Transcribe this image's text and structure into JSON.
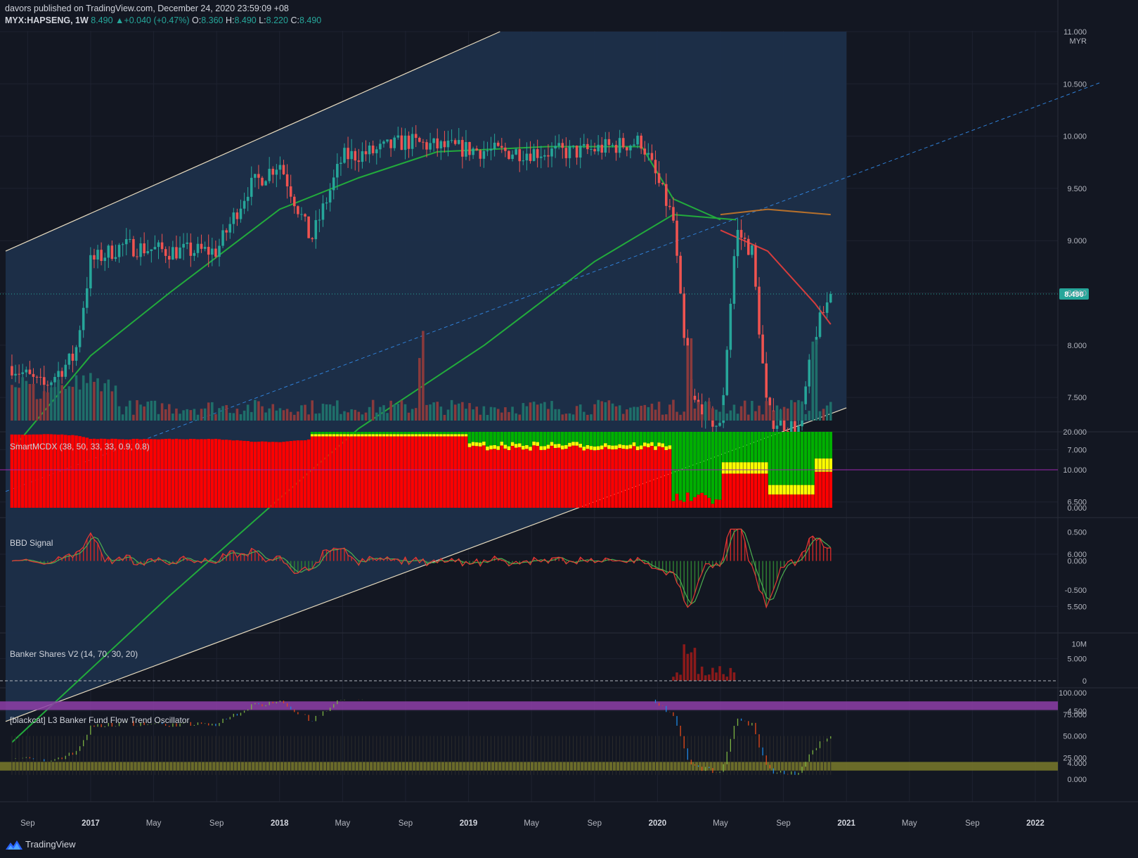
{
  "header": {
    "publisher": "davors published on TradingView.com, December 24, 2020 23:59:09 +08",
    "symbol": "MYX:HAPSENG, 1W",
    "last": "8.490",
    "change": "+0.040 (+0.47%)",
    "open": "8.360",
    "high": "8.490",
    "low": "8.220",
    "close": "8.490",
    "o_label": "O:",
    "h_label": "H:",
    "l_label": "L:",
    "c_label": "C:"
  },
  "panes": {
    "smartmcdx": "SmartMCDX (38, 50, 33, 33, 0.9, 0.8)",
    "bbd": "BBD Signal",
    "banker": "Banker Shares V2 (14, 70, 30, 20)",
    "oscillator": "[blackcat] L3 Banker Fund Flow Trend Oscillator"
  },
  "branding": {
    "name": "TradingView",
    "logo_icon": "tradingview-logo-icon"
  },
  "colors": {
    "background": "#131722",
    "up": "#26a69a",
    "down": "#ef5350",
    "channel_fill": "#1c2f4a",
    "ma_green": "#22ab3c",
    "ma_orange": "#b5702c",
    "ma_red": "#d63c3c",
    "mid_dash": "#2f7fd6",
    "price_label": "#26a69a"
  },
  "chart_data": {
    "type": "candlestick",
    "symbol": "MYX:HAPSENG",
    "interval": "1W",
    "currency": "MYR",
    "last_price": 8.49,
    "x_axis_ticks": [
      "Sep",
      "2017",
      "May",
      "Sep",
      "2018",
      "May",
      "Sep",
      "2019",
      "May",
      "Sep",
      "2020",
      "May",
      "Sep",
      "2021",
      "May",
      "Sep",
      "2022"
    ],
    "price_axis": {
      "ticks": [
        "11.000",
        "10.500",
        "10.000",
        "9.500",
        "9.000",
        "8.500",
        "8.000",
        "7.500",
        "7.000",
        "6.500",
        "6.000",
        "5.500",
        "5.000",
        "4.500",
        "4.000"
      ],
      "ylim": [
        3.6,
        11.0
      ],
      "current_label": "8.490"
    },
    "price_path": {
      "keypoints": [
        [
          "2016-08",
          7.8
        ],
        [
          "2016-10",
          7.6
        ],
        [
          "2016-12",
          7.9
        ],
        [
          "2017-01",
          8.8
        ],
        [
          "2017-03",
          8.95
        ],
        [
          "2017-06",
          8.9
        ],
        [
          "2017-09",
          8.9
        ],
        [
          "2017-11",
          9.5
        ],
        [
          "2018-01",
          9.75
        ],
        [
          "2018-03",
          9.0
        ],
        [
          "2018-05",
          9.8
        ],
        [
          "2018-07",
          9.85
        ],
        [
          "2018-09",
          9.95
        ],
        [
          "2018-11",
          9.9
        ],
        [
          "2019-03",
          9.85
        ],
        [
          "2019-08",
          9.85
        ],
        [
          "2019-12",
          9.95
        ],
        [
          "2020-02",
          9.2
        ],
        [
          "2020-03",
          7.5
        ],
        [
          "2020-05",
          7.2
        ],
        [
          "2020-06",
          9.1
        ],
        [
          "2020-07",
          8.9
        ],
        [
          "2020-08",
          7.3
        ],
        [
          "2020-10",
          7.2
        ],
        [
          "2020-11",
          8.1
        ],
        [
          "2020-12",
          8.49
        ]
      ],
      "weeks": 230
    },
    "channel": {
      "upper": [
        [
          "2016-08",
          8.9
        ],
        [
          "2019-03",
          11.0
        ]
      ],
      "lower": [
        [
          "2016-08",
          4.4
        ],
        [
          "2021-01",
          7.4
        ]
      ],
      "mid_dashed": [
        [
          "2016-08",
          6.6
        ],
        [
          "2021-01",
          9.6
        ]
      ],
      "shaded_until": "2021-01"
    },
    "moving_averages": [
      {
        "color": "#22ab3c",
        "points": [
          [
            "2016-08",
            4.2
          ],
          [
            "2017-06",
            5.6
          ],
          [
            "2018-06",
            7.2
          ],
          [
            "2019-02",
            8.0
          ],
          [
            "2019-09",
            8.8
          ],
          [
            "2020-02",
            9.25
          ],
          [
            "2020-06",
            9.2
          ]
        ]
      },
      {
        "color": "#22ab3c",
        "points": [
          [
            "2016-08",
            7.0
          ],
          [
            "2017-01",
            7.9
          ],
          [
            "2017-06",
            8.5
          ],
          [
            "2018-01",
            9.3
          ],
          [
            "2018-06",
            9.6
          ],
          [
            "2018-11",
            9.85
          ],
          [
            "2019-06",
            9.9
          ],
          [
            "2019-12",
            9.9
          ],
          [
            "2020-02",
            9.4
          ],
          [
            "2020-05",
            9.2
          ]
        ]
      },
      {
        "color": "#b5702c",
        "points": [
          [
            "2020-05",
            9.25
          ],
          [
            "2020-08",
            9.3
          ],
          [
            "2020-12",
            9.25
          ]
        ]
      },
      {
        "color": "#d63c3c",
        "points": [
          [
            "2020-05",
            9.1
          ],
          [
            "2020-08",
            8.9
          ],
          [
            "2020-11",
            8.4
          ],
          [
            "2020-12",
            8.2
          ]
        ]
      }
    ],
    "volume": {
      "note": "weekly volume bars colored by candle direction",
      "spike_weeks": [
        "2018-10",
        "2020-03",
        "2020-11"
      ]
    },
    "smartmcdx": {
      "ticks": [
        "20.000",
        "10.000",
        "0.000"
      ],
      "ylim": [
        0,
        20
      ],
      "colors": [
        "#ff0000",
        "#ffff00",
        "#00b000"
      ]
    },
    "bbd_signal": {
      "ticks": [
        "0.500",
        "0.000",
        "-0.500"
      ],
      "ylim": [
        -1,
        0.7
      ]
    },
    "banker_shares": {
      "ticks": [
        "10M",
        "0"
      ],
      "ylim": [
        0,
        12
      ]
    },
    "oscillator": {
      "ticks": [
        "100.000",
        "75.000",
        "50.000",
        "25.000",
        "0.000"
      ],
      "ylim": [
        0,
        100
      ],
      "overbought_band": [
        80,
        90
      ],
      "oversold_band": [
        10,
        20
      ]
    }
  }
}
